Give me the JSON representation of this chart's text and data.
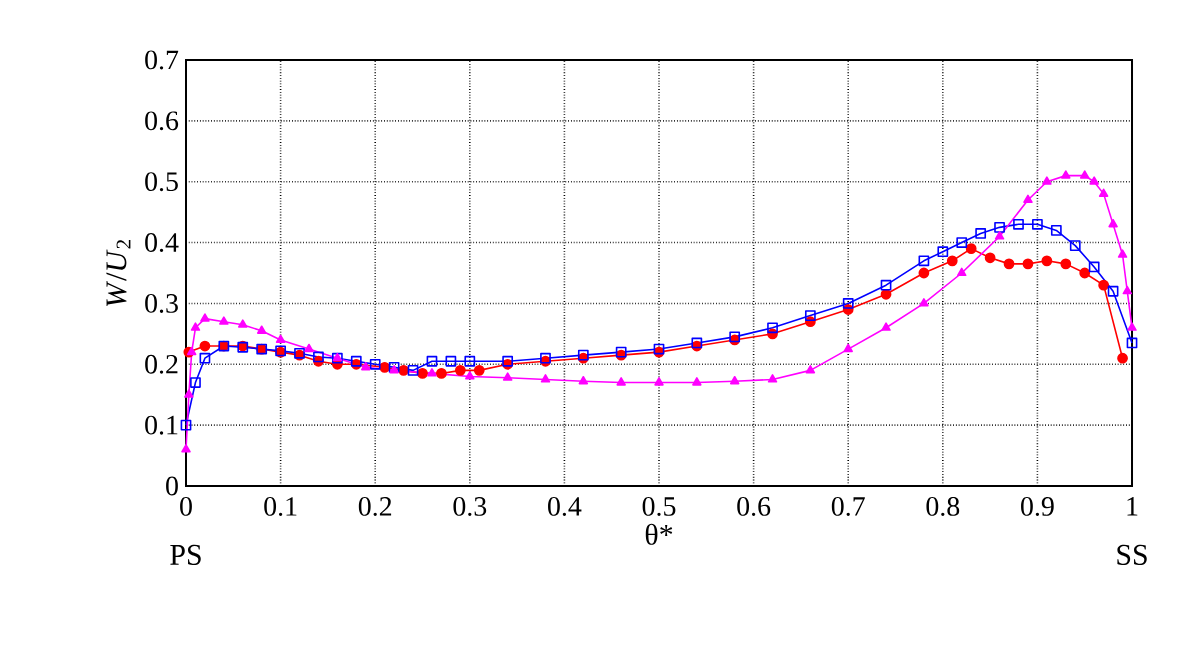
{
  "chart_data": {
    "type": "line",
    "xlabel": "θ*",
    "ylabel": "*W*/*U*$_{2}$",
    "annotations": [
      "PS",
      "SS"
    ],
    "xlim": [
      0,
      1
    ],
    "ylim": [
      0,
      0.7
    ],
    "xticks": [
      0,
      0.1,
      0.2,
      0.3,
      0.4,
      0.5,
      0.6,
      0.7,
      0.8,
      0.9,
      1
    ],
    "yticks": [
      0,
      0.1,
      0.2,
      0.3,
      0.4,
      0.5,
      0.6,
      0.7
    ],
    "grid": true,
    "line_style": "solid",
    "series": [
      {
        "color": "#ff0000",
        "marker": "circle",
        "x": [
          0.003,
          0.02,
          0.04,
          0.06,
          0.08,
          0.1,
          0.12,
          0.14,
          0.16,
          0.18,
          0.21,
          0.23,
          0.25,
          0.27,
          0.29,
          0.31,
          0.34,
          0.38,
          0.42,
          0.46,
          0.5,
          0.54,
          0.58,
          0.62,
          0.66,
          0.7,
          0.74,
          0.78,
          0.81,
          0.83,
          0.85,
          0.87,
          0.89,
          0.91,
          0.93,
          0.95,
          0.97,
          0.99
        ],
        "values": [
          0.22,
          0.23,
          0.23,
          0.23,
          0.225,
          0.22,
          0.215,
          0.205,
          0.2,
          0.2,
          0.195,
          0.19,
          0.185,
          0.185,
          0.19,
          0.19,
          0.2,
          0.205,
          0.21,
          0.215,
          0.22,
          0.23,
          0.24,
          0.25,
          0.27,
          0.29,
          0.315,
          0.35,
          0.37,
          0.39,
          0.375,
          0.365,
          0.365,
          0.37,
          0.365,
          0.35,
          0.33,
          0.21
        ]
      },
      {
        "color": "#0000ff",
        "marker": "square",
        "x": [
          0.0,
          0.01,
          0.02,
          0.04,
          0.06,
          0.08,
          0.1,
          0.12,
          0.14,
          0.16,
          0.18,
          0.2,
          0.22,
          0.24,
          0.26,
          0.28,
          0.3,
          0.34,
          0.38,
          0.42,
          0.46,
          0.5,
          0.54,
          0.58,
          0.62,
          0.66,
          0.7,
          0.74,
          0.78,
          0.8,
          0.82,
          0.84,
          0.86,
          0.88,
          0.9,
          0.92,
          0.94,
          0.96,
          0.98,
          1.0
        ],
        "values": [
          0.1,
          0.17,
          0.21,
          0.23,
          0.228,
          0.225,
          0.222,
          0.218,
          0.212,
          0.21,
          0.205,
          0.2,
          0.195,
          0.19,
          0.205,
          0.205,
          0.205,
          0.205,
          0.21,
          0.215,
          0.22,
          0.225,
          0.235,
          0.245,
          0.26,
          0.28,
          0.3,
          0.33,
          0.37,
          0.385,
          0.4,
          0.415,
          0.425,
          0.43,
          0.43,
          0.42,
          0.395,
          0.36,
          0.32,
          0.235
        ]
      },
      {
        "color": "#ff00ff",
        "marker": "triangle",
        "x": [
          0.0,
          0.003,
          0.006,
          0.01,
          0.02,
          0.04,
          0.06,
          0.08,
          0.1,
          0.13,
          0.16,
          0.19,
          0.22,
          0.26,
          0.3,
          0.34,
          0.38,
          0.42,
          0.46,
          0.5,
          0.54,
          0.58,
          0.62,
          0.66,
          0.7,
          0.74,
          0.78,
          0.82,
          0.86,
          0.89,
          0.91,
          0.93,
          0.95,
          0.96,
          0.97,
          0.98,
          0.99,
          0.995,
          1.0
        ],
        "values": [
          0.06,
          0.15,
          0.22,
          0.26,
          0.275,
          0.27,
          0.265,
          0.255,
          0.24,
          0.225,
          0.21,
          0.195,
          0.19,
          0.185,
          0.18,
          0.178,
          0.175,
          0.172,
          0.17,
          0.17,
          0.17,
          0.172,
          0.175,
          0.19,
          0.225,
          0.26,
          0.3,
          0.35,
          0.41,
          0.47,
          0.5,
          0.51,
          0.51,
          0.5,
          0.48,
          0.43,
          0.38,
          0.32,
          0.26
        ]
      }
    ]
  }
}
